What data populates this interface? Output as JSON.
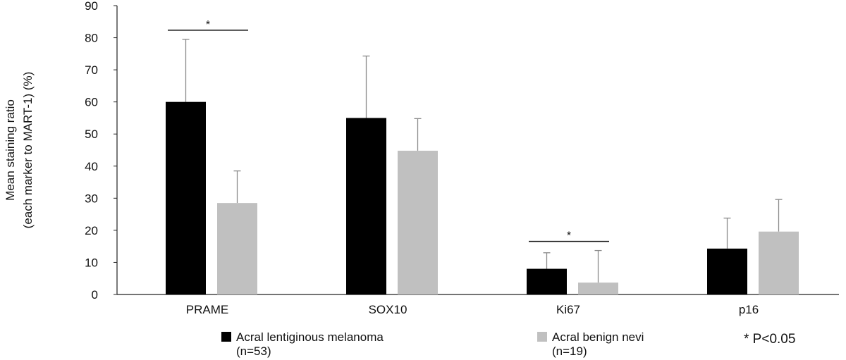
{
  "chart_data": {
    "type": "bar",
    "ylabel_line1": "Mean staining ratio",
    "ylabel_line2": "(each marker to MART-1) (%)",
    "ylim": [
      0,
      90
    ],
    "yticks": [
      0,
      10,
      20,
      30,
      40,
      50,
      60,
      70,
      80,
      90
    ],
    "grid": false,
    "categories": [
      "PRAME",
      "SOX10",
      "Ki67",
      "p16"
    ],
    "series": [
      {
        "name": "Acral lentiginous melanoma",
        "name_sub": "(n=53)",
        "color": "#000000",
        "values": [
          60,
          55,
          8,
          14.3
        ],
        "errors": [
          19.5,
          19.3,
          5,
          9.5
        ]
      },
      {
        "name": "Acral benign nevi",
        "name_sub": "(n=19)",
        "color": "#c0c0c0",
        "values": [
          28.5,
          44.8,
          3.7,
          19.6
        ],
        "errors": [
          10,
          10,
          10,
          10
        ]
      }
    ],
    "significance": [
      {
        "category": "PRAME",
        "label": "*"
      },
      {
        "category": "Ki67",
        "label": "*"
      }
    ],
    "note": "* P<0.05",
    "legend_position": "bottom"
  }
}
